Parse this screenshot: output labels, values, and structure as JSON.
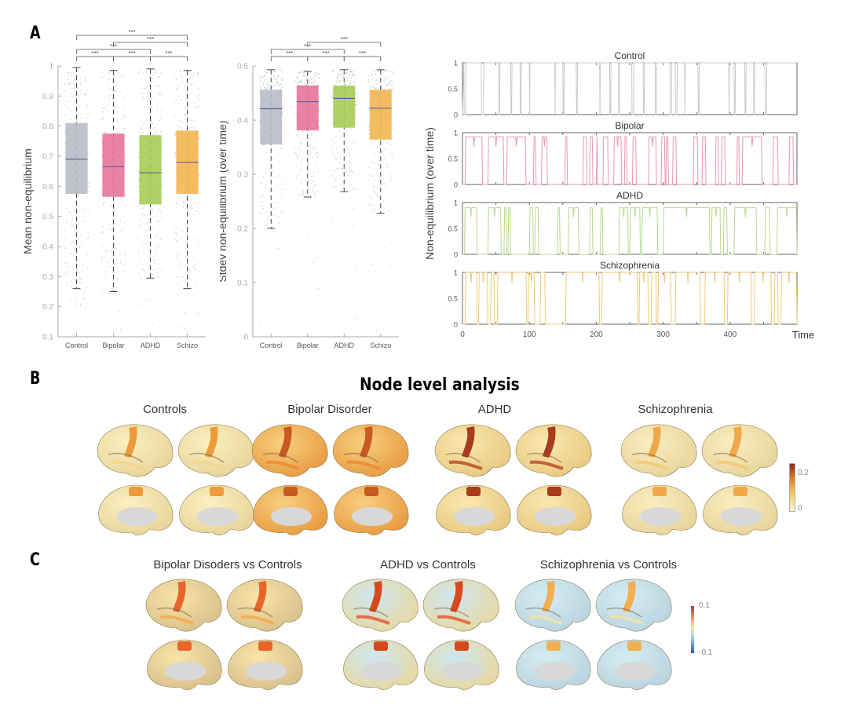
{
  "panels": {
    "A": "A",
    "B": "B",
    "C": "C"
  },
  "section_b_title": "Node level analysis",
  "chart_data": [
    {
      "id": "mean-boxplot",
      "type": "box",
      "title": "",
      "xlabel": "",
      "ylabel": "Mean non-equilibrium",
      "ylim": [
        0.1,
        1.0
      ],
      "yticks": [
        0.1,
        0.2,
        0.3,
        0.4,
        0.5,
        0.6,
        0.7,
        0.8,
        0.9,
        1
      ],
      "ytick_labels": [
        "0.1",
        "0.2",
        "0.3",
        "0.4",
        "0.5",
        "0.6",
        "0.7",
        "0.8",
        "0.9",
        "1"
      ],
      "categories": [
        "Control",
        "Bipolar",
        "ADHD",
        "Schizo"
      ],
      "colors": [
        "#b9bcc6",
        "#e8749c",
        "#a8cc55",
        "#f4b650"
      ],
      "median_color": "#5a5fa0",
      "boxes": [
        {
          "whisker_low": 0.26,
          "q1": 0.575,
          "median": 0.69,
          "q3": 0.81,
          "whisker_high": 0.995
        },
        {
          "whisker_low": 0.25,
          "q1": 0.565,
          "median": 0.665,
          "q3": 0.775,
          "whisker_high": 0.985
        },
        {
          "whisker_low": 0.295,
          "q1": 0.54,
          "median": 0.645,
          "q3": 0.77,
          "whisker_high": 0.99
        },
        {
          "whisker_low": 0.26,
          "q1": 0.575,
          "median": 0.68,
          "q3": 0.785,
          "whisker_high": 0.985
        }
      ],
      "significance": [
        {
          "from": 0,
          "to": 1,
          "label": "***",
          "level": 0
        },
        {
          "from": 1,
          "to": 2,
          "label": "***",
          "level": 0
        },
        {
          "from": 2,
          "to": 3,
          "label": "***",
          "level": 0
        },
        {
          "from": 0,
          "to": 2,
          "label": "***",
          "level": 1
        },
        {
          "from": 1,
          "to": 3,
          "label": "***",
          "level": 2
        },
        {
          "from": 0,
          "to": 3,
          "label": "***",
          "level": 3
        }
      ]
    },
    {
      "id": "stdev-boxplot",
      "type": "box",
      "title": "",
      "xlabel": "",
      "ylabel": "Stdev non-equilibrium (over time)",
      "ylim": [
        0,
        0.5
      ],
      "yticks": [
        0,
        0.1,
        0.2,
        0.3,
        0.4,
        0.5
      ],
      "ytick_labels": [
        "0",
        "0.1",
        "0.2",
        "0.3",
        "0.4",
        "0.5"
      ],
      "categories": [
        "Control",
        "Bipolar",
        "ADHD",
        "Schizo"
      ],
      "colors": [
        "#b9bcc6",
        "#e8749c",
        "#a8cc55",
        "#f4b650"
      ],
      "median_color": "#5a5fa0",
      "boxes": [
        {
          "whisker_low": 0.2,
          "q1": 0.355,
          "median": 0.421,
          "q3": 0.456,
          "whisker_high": 0.493
        },
        {
          "whisker_low": 0.258,
          "q1": 0.381,
          "median": 0.434,
          "q3": 0.464,
          "whisker_high": 0.49
        },
        {
          "whisker_low": 0.268,
          "q1": 0.386,
          "median": 0.44,
          "q3": 0.464,
          "whisker_high": 0.493
        },
        {
          "whisker_low": 0.228,
          "q1": 0.364,
          "median": 0.422,
          "q3": 0.456,
          "whisker_high": 0.493
        }
      ],
      "significance": [
        {
          "from": 0,
          "to": 1,
          "label": "***",
          "level": 0
        },
        {
          "from": 1,
          "to": 2,
          "label": "***",
          "level": 0
        },
        {
          "from": 2,
          "to": 3,
          "label": "***",
          "level": 0
        },
        {
          "from": 0,
          "to": 2,
          "label": "***",
          "level": 1
        },
        {
          "from": 1,
          "to": 3,
          "label": "***",
          "level": 2
        }
      ]
    },
    {
      "id": "timeseries",
      "type": "line",
      "ylabel": "Non-equilibrium (over time)",
      "xlabel": "Time",
      "xlim": [
        0,
        500
      ],
      "ylim": [
        0,
        1
      ],
      "xticks": [
        0,
        100,
        200,
        300,
        400
      ],
      "xtick_labels": [
        "0",
        "100",
        "200",
        "300",
        "400"
      ],
      "yticks": [
        0,
        0.5,
        1
      ],
      "ytick_labels": [
        "0",
        "0.5",
        "1"
      ],
      "series": [
        {
          "name": "Control",
          "color": "#c8c8c8",
          "segments_high": [
            [
              2,
              5
            ],
            [
              28,
              32
            ],
            [
              54,
              56
            ],
            [
              72,
              74
            ],
            [
              86,
              88
            ],
            [
              100,
              101
            ],
            [
              138,
              139
            ],
            [
              150,
              152
            ],
            [
              170,
              172
            ],
            [
              205,
              206
            ],
            [
              220,
              222
            ],
            [
              233,
              235
            ],
            [
              253,
              256
            ],
            [
              270,
              272
            ],
            [
              288,
              290
            ],
            [
              310,
              313
            ],
            [
              318,
              321
            ],
            [
              332,
              333
            ],
            [
              352,
              354
            ],
            [
              398,
              399
            ],
            [
              406,
              408
            ],
            [
              422,
              424
            ],
            [
              435,
              437
            ],
            [
              452,
              455
            ]
          ],
          "baseline": 0.95,
          "dip_mode": true
        },
        {
          "name": "Bipolar",
          "color": "#e898b0",
          "segments_high": [
            [
              4,
              30
            ],
            [
              38,
              62
            ],
            [
              66,
              95
            ],
            [
              106,
              110
            ],
            [
              118,
              127
            ],
            [
              153,
              157
            ],
            [
              180,
              186
            ],
            [
              190,
              195
            ],
            [
              200,
              202
            ],
            [
              210,
              218
            ],
            [
              226,
              238
            ],
            [
              242,
              246
            ],
            [
              254,
              260
            ],
            [
              278,
              290
            ],
            [
              297,
              303
            ],
            [
              304,
              308
            ],
            [
              314,
              320
            ],
            [
              345,
              352
            ],
            [
              358,
              364
            ],
            [
              378,
              383
            ],
            [
              387,
              393
            ],
            [
              410,
              414
            ],
            [
              418,
              448
            ],
            [
              464,
              472
            ],
            [
              488,
              495
            ]
          ],
          "level": 0.92
        },
        {
          "name": "ADHD",
          "color": "#b8d88a",
          "segments_high": [
            [
              3,
              22
            ],
            [
              38,
              58
            ],
            [
              62,
              66
            ],
            [
              68,
              72
            ],
            [
              100,
              106
            ],
            [
              108,
              114
            ],
            [
              142,
              146
            ],
            [
              158,
              174
            ],
            [
              190,
              195
            ],
            [
              206,
              210
            ],
            [
              234,
              248
            ],
            [
              250,
              266
            ],
            [
              268,
              292
            ],
            [
              300,
              370
            ],
            [
              372,
              386
            ],
            [
              390,
              396
            ],
            [
              406,
              440
            ],
            [
              452,
              460
            ],
            [
              470,
              500
            ]
          ],
          "level": 0.9
        },
        {
          "name": "Schizophrenia",
          "color": "#f0c878",
          "segments_high": [
            [
              4,
              22
            ],
            [
              24,
              38
            ],
            [
              42,
              48
            ],
            [
              52,
              96
            ],
            [
              98,
              108
            ],
            [
              116,
              124
            ],
            [
              154,
              205
            ],
            [
              208,
              262
            ],
            [
              264,
              278
            ],
            [
              282,
              290
            ],
            [
              292,
              312
            ],
            [
              318,
              356
            ],
            [
              362,
              392
            ],
            [
              396,
              432
            ],
            [
              436,
              462
            ],
            [
              466,
              472
            ],
            [
              476,
              500
            ]
          ],
          "level": 1.0
        }
      ]
    }
  ],
  "brains_b": {
    "titles": [
      "Controls",
      "Bipolar Disorder",
      "ADHD",
      "Schizophrenia"
    ],
    "colorbar": {
      "max_label": "0.2",
      "min_label": "0",
      "colors": [
        "#fdf6d0",
        "#f5c35a",
        "#e07a22",
        "#8a2a1a"
      ]
    }
  },
  "brains_c": {
    "titles": [
      "Bipolar Disoders vs Controls",
      "ADHD vs Controls",
      "Schizophrenia vs Controls"
    ],
    "colorbar": {
      "max_label": "0.1",
      "min_label": "-0.1",
      "colors": [
        "#c0392b",
        "#f39c35",
        "#f6e7a8",
        "#a9d6ec",
        "#2c5aa0"
      ]
    }
  }
}
